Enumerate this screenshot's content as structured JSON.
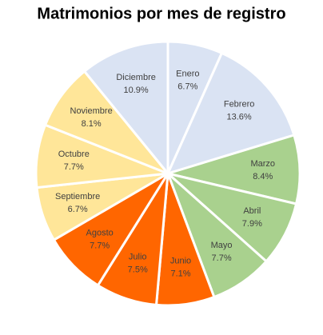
{
  "chart_data": {
    "type": "pie",
    "title": "Matrimonios por mes de registro",
    "categories": [
      "Enero",
      "Febrero",
      "Marzo",
      "Abril",
      "Mayo",
      "Junio",
      "Julio",
      "Agosto",
      "Septiembre",
      "Octubre",
      "Noviembre",
      "Diciembre"
    ],
    "values": [
      6.7,
      13.6,
      8.4,
      7.9,
      7.7,
      7.1,
      7.5,
      7.7,
      6.7,
      7.7,
      8.1,
      10.9
    ],
    "value_labels": [
      "6.7%",
      "13.6%",
      "8.4%",
      "7.9%",
      "7.7%",
      "7.1%",
      "7.5%",
      "7.7%",
      "6.7%",
      "7.7%",
      "8.1%",
      "10.9%"
    ],
    "colors": [
      "#dae3f3",
      "#dae3f3",
      "#a9d18e",
      "#a9d18e",
      "#a9d18e",
      "#ff6600",
      "#ff6600",
      "#ff6600",
      "#ffe699",
      "#ffe699",
      "#ffe699",
      "#dae3f3"
    ]
  }
}
